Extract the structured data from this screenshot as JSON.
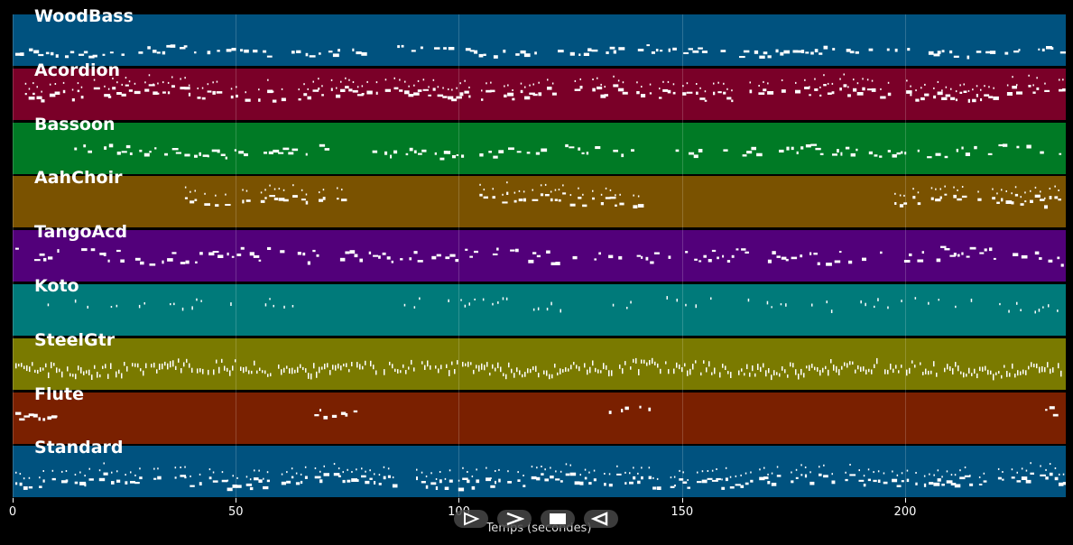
{
  "tracks": [
    {
      "name": "WoodBass",
      "color": "#00527f",
      "pattern": "bass",
      "active": [
        [
          0,
          236
        ]
      ]
    },
    {
      "name": "Acordion",
      "color": "#7a0028",
      "pattern": "chords",
      "active": [
        [
          0,
          236
        ]
      ]
    },
    {
      "name": "Bassoon",
      "color": "#007a25",
      "pattern": "line",
      "active": [
        [
          12,
          75
        ],
        [
          80,
          140
        ],
        [
          144,
          236
        ]
      ]
    },
    {
      "name": "AahChoir",
      "color": "#7a5200",
      "pattern": "chords",
      "active": [
        [
          38,
          75
        ],
        [
          104,
          141
        ],
        [
          197,
          235
        ]
      ]
    },
    {
      "name": "TangoAcd",
      "color": "#52007a",
      "pattern": "melody",
      "active": [
        [
          0,
          236
        ]
      ]
    },
    {
      "name": "Koto",
      "color": "#007a7a",
      "pattern": "pluck",
      "active": [
        [
          4,
          72
        ],
        [
          85,
          141
        ],
        [
          145,
          235
        ]
      ]
    },
    {
      "name": "SteelGtr",
      "color": "#7a7a00",
      "pattern": "strum",
      "active": [
        [
          0,
          236
        ]
      ]
    },
    {
      "name": "Flute",
      "color": "#7a2000",
      "pattern": "phrase",
      "active": [
        [
          0,
          11
        ],
        [
          67,
          78
        ],
        [
          133,
          144
        ],
        [
          227,
          235
        ]
      ]
    },
    {
      "name": "Standard",
      "color": "#00527f",
      "pattern": "drums",
      "active": [
        [
          0,
          236
        ]
      ]
    }
  ],
  "x_axis": {
    "label": "Temps (secondes)",
    "ticks": [
      {
        "value": 0,
        "label": "0"
      },
      {
        "value": 50,
        "label": "50"
      },
      {
        "value": 100,
        "label": "100"
      },
      {
        "value": 150,
        "label": "150"
      },
      {
        "value": 200,
        "label": "200"
      }
    ],
    "range": [
      0,
      236
    ]
  },
  "controls": [
    {
      "name": "play-button",
      "icon": "play-icon"
    },
    {
      "name": "forward-button",
      "icon": "chevron-right-icon"
    },
    {
      "name": "stop-button",
      "icon": "stop-icon"
    },
    {
      "name": "rewind-button",
      "icon": "rewind-icon"
    }
  ]
}
